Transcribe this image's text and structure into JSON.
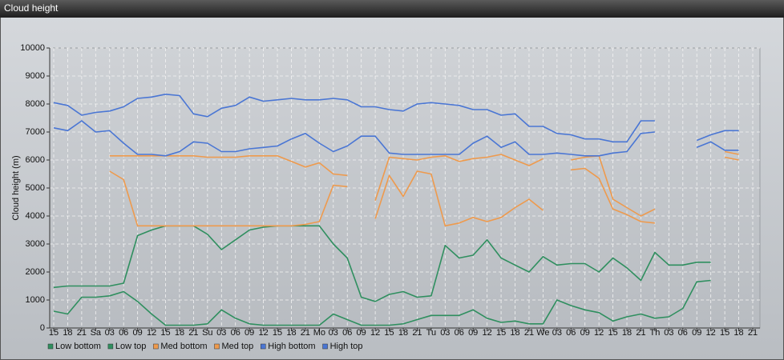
{
  "chart_data": {
    "type": "line",
    "title": "Cloud height",
    "y_label": "Cloud height (m)",
    "categories": [
      "15",
      "18",
      "21",
      "Sa",
      "03",
      "06",
      "09",
      "12",
      "15",
      "18",
      "21",
      "Su",
      "03",
      "06",
      "09",
      "12",
      "15",
      "18",
      "21",
      "Mo",
      "03",
      "06",
      "09",
      "12",
      "15",
      "18",
      "21",
      "Tu",
      "03",
      "06",
      "09",
      "12",
      "15",
      "18",
      "21",
      "We",
      "03",
      "06",
      "09",
      "12",
      "15",
      "18",
      "21",
      "Th",
      "03",
      "06",
      "09",
      "12",
      "15",
      "18",
      "21"
    ],
    "ylim": [
      0,
      10000
    ],
    "yticks": [
      0,
      1000,
      2000,
      3000,
      4000,
      5000,
      6000,
      7000,
      8000,
      9000,
      10000
    ],
    "grid": true,
    "legend": "bottom",
    "series": [
      {
        "name": "Low bottom",
        "color": "#2f8f5f",
        "values": [
          600,
          500,
          1100,
          1100,
          1150,
          1300,
          950,
          500,
          100,
          100,
          100,
          150,
          650,
          350,
          150,
          100,
          100,
          100,
          100,
          100,
          500,
          300,
          100,
          100,
          100,
          150,
          300,
          450,
          450,
          450,
          650,
          350,
          200,
          250,
          150,
          150,
          1000,
          800,
          650,
          550,
          250,
          400,
          500,
          350,
          400,
          700,
          1650,
          1700,
          null,
          null,
          null
        ]
      },
      {
        "name": "Low top",
        "color": "#2f8f5f",
        "values": [
          1450,
          1500,
          1500,
          1500,
          1500,
          1600,
          3300,
          3500,
          3650,
          3650,
          3650,
          3350,
          2800,
          3150,
          3500,
          3600,
          3650,
          3650,
          3650,
          3650,
          3000,
          2500,
          1100,
          950,
          1200,
          1300,
          1100,
          1150,
          2950,
          2500,
          2600,
          3150,
          2500,
          2250,
          2000,
          2550,
          2250,
          2300,
          2300,
          2000,
          2500,
          2150,
          1700,
          2700,
          2250,
          2250,
          2350,
          2350,
          null,
          null,
          null
        ]
      },
      {
        "name": "Med bottom",
        "color": "#ee9a4d",
        "values": [
          null,
          null,
          null,
          null,
          5600,
          5300,
          3650,
          3650,
          3650,
          3650,
          3650,
          3650,
          3650,
          3650,
          3650,
          3650,
          3650,
          3650,
          3700,
          3800,
          5100,
          5050,
          null,
          3900,
          5450,
          4700,
          5600,
          5500,
          3650,
          3750,
          3950,
          3800,
          3950,
          4300,
          4600,
          4200,
          null,
          5650,
          5700,
          5350,
          4250,
          4050,
          3800,
          3750,
          null,
          null,
          null,
          null,
          6100,
          6000,
          null
        ]
      },
      {
        "name": "Med top",
        "color": "#ee9a4d",
        "values": [
          null,
          null,
          null,
          null,
          6150,
          6150,
          6150,
          6150,
          6150,
          6150,
          6150,
          6100,
          6100,
          6100,
          6150,
          6150,
          6150,
          5950,
          5750,
          5900,
          5500,
          5450,
          null,
          4550,
          6100,
          6050,
          6000,
          6100,
          6150,
          5950,
          6050,
          6100,
          6200,
          6000,
          5800,
          6050,
          null,
          6000,
          6100,
          6150,
          4600,
          4300,
          4000,
          4250,
          null,
          null,
          null,
          null,
          6300,
          6200,
          null
        ]
      },
      {
        "name": "High bottom",
        "color": "#4a76d4",
        "values": [
          7150,
          7050,
          7400,
          7000,
          7050,
          6600,
          6200,
          6200,
          6150,
          6300,
          6650,
          6600,
          6300,
          6300,
          6400,
          6450,
          6500,
          6750,
          6950,
          6600,
          6300,
          6500,
          6850,
          6850,
          6250,
          6200,
          6200,
          6200,
          6200,
          6200,
          6600,
          6850,
          6450,
          6650,
          6200,
          6200,
          6250,
          6200,
          6150,
          6150,
          6250,
          6300,
          6950,
          7000,
          null,
          null,
          6450,
          6650,
          6350,
          6350,
          null
        ]
      },
      {
        "name": "High top",
        "color": "#4a76d4",
        "values": [
          8050,
          7950,
          7600,
          7700,
          7750,
          7900,
          8200,
          8250,
          8350,
          8300,
          7650,
          7550,
          7850,
          7950,
          8250,
          8100,
          8150,
          8200,
          8150,
          8150,
          8200,
          8150,
          7900,
          7900,
          7800,
          7750,
          8000,
          8050,
          8000,
          7950,
          7800,
          7800,
          7600,
          7650,
          7200,
          7200,
          6950,
          6900,
          6750,
          6750,
          6650,
          6650,
          7400,
          7400,
          null,
          null,
          6700,
          6900,
          7050,
          7050,
          null
        ]
      }
    ]
  }
}
